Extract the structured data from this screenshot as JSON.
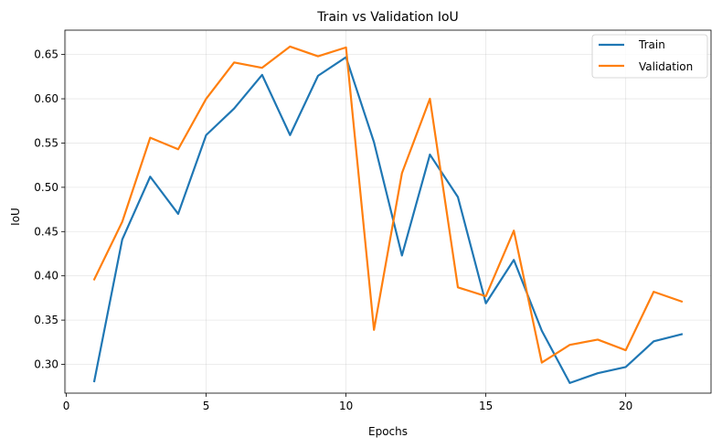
{
  "chart_data": {
    "type": "line",
    "title": "Train vs Validation IoU",
    "xlabel": "Epochs",
    "ylabel": "IoU",
    "xlim": [
      -0.05,
      23.05
    ],
    "ylim": [
      0.2675,
      0.6775
    ],
    "xticks": [
      0,
      5,
      10,
      15,
      20
    ],
    "xtick_labels": [
      "0",
      "5",
      "10",
      "15",
      "20"
    ],
    "yticks": [
      0.3,
      0.35,
      0.4,
      0.45,
      0.5,
      0.55,
      0.6,
      0.65
    ],
    "ytick_labels": [
      "0.30",
      "0.35",
      "0.40",
      "0.45",
      "0.50",
      "0.55",
      "0.60",
      "0.65"
    ],
    "grid": true,
    "legend_position": "top-right",
    "x": [
      1,
      2,
      3,
      4,
      5,
      6,
      7,
      8,
      9,
      10,
      11,
      12,
      13,
      14,
      15,
      16,
      17,
      18,
      19,
      20,
      21,
      22
    ],
    "series": [
      {
        "name": "Train",
        "color": "#1f77b4",
        "values": [
          0.281,
          0.441,
          0.512,
          0.47,
          0.559,
          0.589,
          0.627,
          0.559,
          0.626,
          0.647,
          0.551,
          0.423,
          0.537,
          0.489,
          0.369,
          0.418,
          0.338,
          0.279,
          0.29,
          0.297,
          0.326,
          0.334
        ]
      },
      {
        "name": "Validation",
        "color": "#ff7f0e",
        "values": [
          0.396,
          0.461,
          0.556,
          0.543,
          0.6,
          0.641,
          0.635,
          0.659,
          0.648,
          0.658,
          0.339,
          0.516,
          0.6,
          0.387,
          0.377,
          0.451,
          0.302,
          0.322,
          0.328,
          0.316,
          0.382,
          0.371
        ]
      }
    ]
  }
}
